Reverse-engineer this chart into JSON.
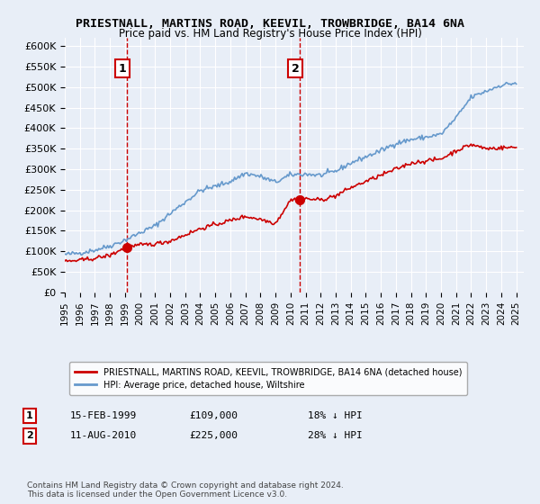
{
  "title": "PRIESTNALL, MARTINS ROAD, KEEVIL, TROWBRIDGE, BA14 6NA",
  "subtitle": "Price paid vs. HM Land Registry's House Price Index (HPI)",
  "background_color": "#e8eef7",
  "plot_bg_color": "#e8eef7",
  "ylim": [
    0,
    600000
  ],
  "yticks": [
    0,
    50000,
    100000,
    150000,
    200000,
    250000,
    300000,
    350000,
    400000,
    450000,
    500000,
    550000,
    600000
  ],
  "ytick_labels": [
    "£0",
    "£50K",
    "£100K",
    "£150K",
    "£200K",
    "£250K",
    "£300K",
    "£350K",
    "£400K",
    "£450K",
    "£500K",
    "£550K",
    "£600K"
  ],
  "xlabel_years": [
    "1995",
    "1996",
    "1997",
    "1998",
    "1999",
    "2000",
    "2001",
    "2002",
    "2003",
    "2004",
    "2005",
    "2006",
    "2007",
    "2008",
    "2009",
    "2010",
    "2011",
    "2012",
    "2013",
    "2014",
    "2015",
    "2016",
    "2017",
    "2018",
    "2019",
    "2020",
    "2021",
    "2022",
    "2023",
    "2024",
    "2025"
  ],
  "sale1_date": "15-FEB-1999",
  "sale1_price": 109000,
  "sale1_x": 1999.12,
  "sale1_label": "1",
  "sale1_pct": "18% ↓ HPI",
  "sale2_date": "11-AUG-2010",
  "sale2_price": 225000,
  "sale2_x": 2010.62,
  "sale2_label": "2",
  "sale2_pct": "28% ↓ HPI",
  "legend_red_label": "PRIESTNALL, MARTINS ROAD, KEEVIL, TROWBRIDGE, BA14 6NA (detached house)",
  "legend_blue_label": "HPI: Average price, detached house, Wiltshire",
  "footer": "Contains HM Land Registry data © Crown copyright and database right 2024.\nThis data is licensed under the Open Government Licence v3.0.",
  "red_color": "#cc0000",
  "blue_color": "#6699cc",
  "dashed_color": "#cc0000"
}
